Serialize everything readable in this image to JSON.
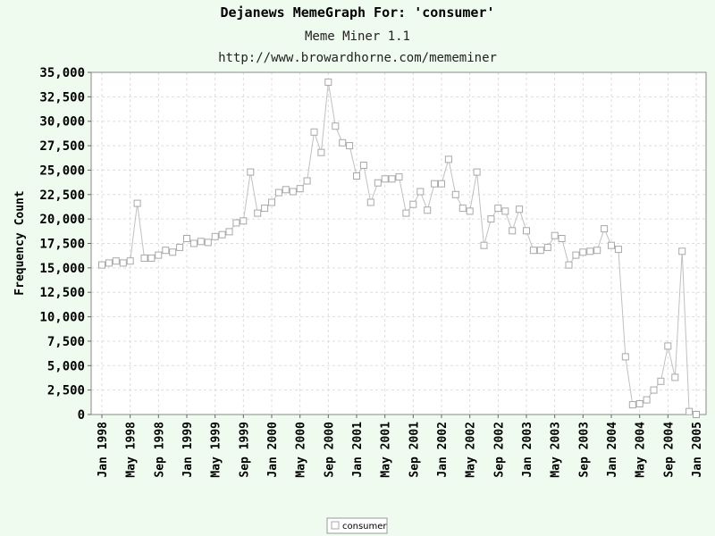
{
  "chart_data": {
    "type": "line",
    "title": "Dejanews MemeGraph For: 'consumer'",
    "subtitle": "Meme Miner 1.1",
    "subtitle2": "http://www.browardhorne.com/mememiner",
    "xlabel": "",
    "ylabel": "Frequency Count",
    "ylim": [
      0,
      35000
    ],
    "y_ticks": [
      "0",
      "2,500",
      "5,000",
      "7,500",
      "10,000",
      "12,500",
      "15,000",
      "17,500",
      "20,000",
      "22,500",
      "25,000",
      "27,500",
      "30,000",
      "32,500",
      "35,000"
    ],
    "x_ticks": [
      "Jan 1998",
      "May 1998",
      "Sep 1998",
      "Jan 1999",
      "May 1999",
      "Sep 1999",
      "Jan 2000",
      "May 2000",
      "Sep 2000",
      "Jan 2001",
      "May 2001",
      "Sep 2001",
      "Jan 2002",
      "May 2002",
      "Sep 2002",
      "Jan 2003",
      "May 2003",
      "Sep 2003",
      "Jan 2004",
      "May 2004",
      "Sep 2004",
      "Jan 2005"
    ],
    "x_start": "Jan 1998",
    "grid": true,
    "legend_position": "bottom-center",
    "series": [
      {
        "name": "consumer",
        "color": "#c0c0c0",
        "values": [
          15300,
          15500,
          15700,
          15500,
          15700,
          21600,
          16000,
          16000,
          16300,
          16800,
          16600,
          17100,
          18000,
          17500,
          17700,
          17600,
          18200,
          18400,
          18700,
          19600,
          19800,
          24800,
          20600,
          21100,
          21700,
          22700,
          23000,
          22800,
          23100,
          23900,
          28900,
          26800,
          34000,
          29500,
          27800,
          27500,
          24400,
          25500,
          21700,
          23700,
          24100,
          24100,
          24300,
          20600,
          21500,
          22800,
          20900,
          23600,
          23600,
          26100,
          22500,
          21100,
          20800,
          24800,
          17300,
          20000,
          21100,
          20800,
          18800,
          21000,
          18800,
          16800,
          16800,
          17100,
          18300,
          18000,
          15300,
          16300,
          16600,
          16700,
          16800,
          19000,
          17300,
          16900,
          5900,
          1000,
          1100,
          1500,
          2500,
          3400,
          7000,
          3800,
          16700,
          300,
          0
        ]
      }
    ]
  }
}
